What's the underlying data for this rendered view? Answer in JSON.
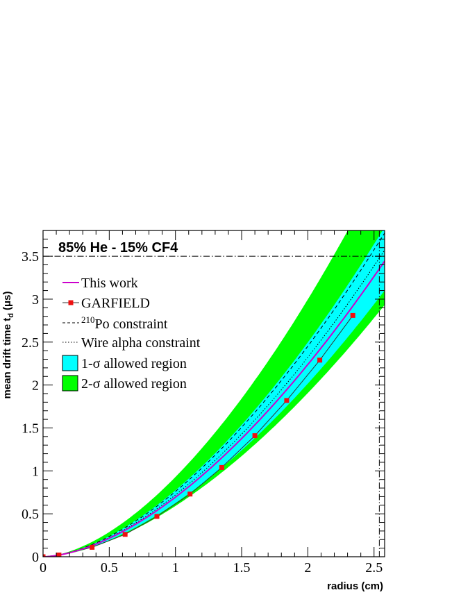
{
  "chart_data": {
    "type": "line",
    "title": "85% He - 15% CF4",
    "xlabel": "radius (cm)",
    "ylabel": "mean drift time t",
    "ylabel_sub": "d",
    "ylabel_unit": "(μs)",
    "xlim": [
      0,
      2.58
    ],
    "ylim": [
      0,
      3.8
    ],
    "x_ticks": [
      0,
      0.5,
      1,
      1.5,
      2,
      2.5
    ],
    "x_tick_labels": [
      "0",
      "0.5",
      "1",
      "1.5",
      "2",
      "2.5"
    ],
    "y_ticks": [
      0,
      0.5,
      1,
      1.5,
      2,
      2.5,
      3,
      3.5
    ],
    "y_tick_labels": [
      "0",
      "0.5",
      "1",
      "1.5",
      "2",
      "2.5",
      "3",
      "3.5"
    ],
    "grid": false,
    "legend_position": "top-left",
    "reference_lines": {
      "horizontal_y": 3.5,
      "vertical_x": 2.54
    },
    "model": {
      "exponent": 1.69,
      "this_work_coeff": 0.694,
      "po_coeff": 0.76,
      "wire_alpha_coeff": 0.72,
      "sigma1_band": [
        0.625,
        0.774
      ],
      "sigma2_band": [
        0.591,
        0.929
      ]
    },
    "series": [
      {
        "name": "This work",
        "style": "solid",
        "color": "#cc00cc"
      },
      {
        "name": "GARFIELD",
        "style": "markers",
        "color": "#ee1111",
        "x": [
          0.0,
          0.12,
          0.37,
          0.62,
          0.86,
          1.11,
          1.35,
          1.6,
          1.84,
          2.09,
          2.34
        ],
        "y": [
          0.0,
          0.02,
          0.11,
          0.26,
          0.47,
          0.73,
          1.04,
          1.41,
          1.82,
          2.29,
          2.81
        ]
      },
      {
        "name": "Po constraint",
        "name_sup": "210",
        "style": "dashed",
        "color": "#000000"
      },
      {
        "name": "Wire alpha constraint",
        "style": "dotted",
        "color": "#000000"
      },
      {
        "name": "1-σ allowed region",
        "style": "band",
        "color": "#00ffff"
      },
      {
        "name": "2-σ allowed region",
        "style": "band",
        "color": "#00ff00"
      }
    ]
  }
}
